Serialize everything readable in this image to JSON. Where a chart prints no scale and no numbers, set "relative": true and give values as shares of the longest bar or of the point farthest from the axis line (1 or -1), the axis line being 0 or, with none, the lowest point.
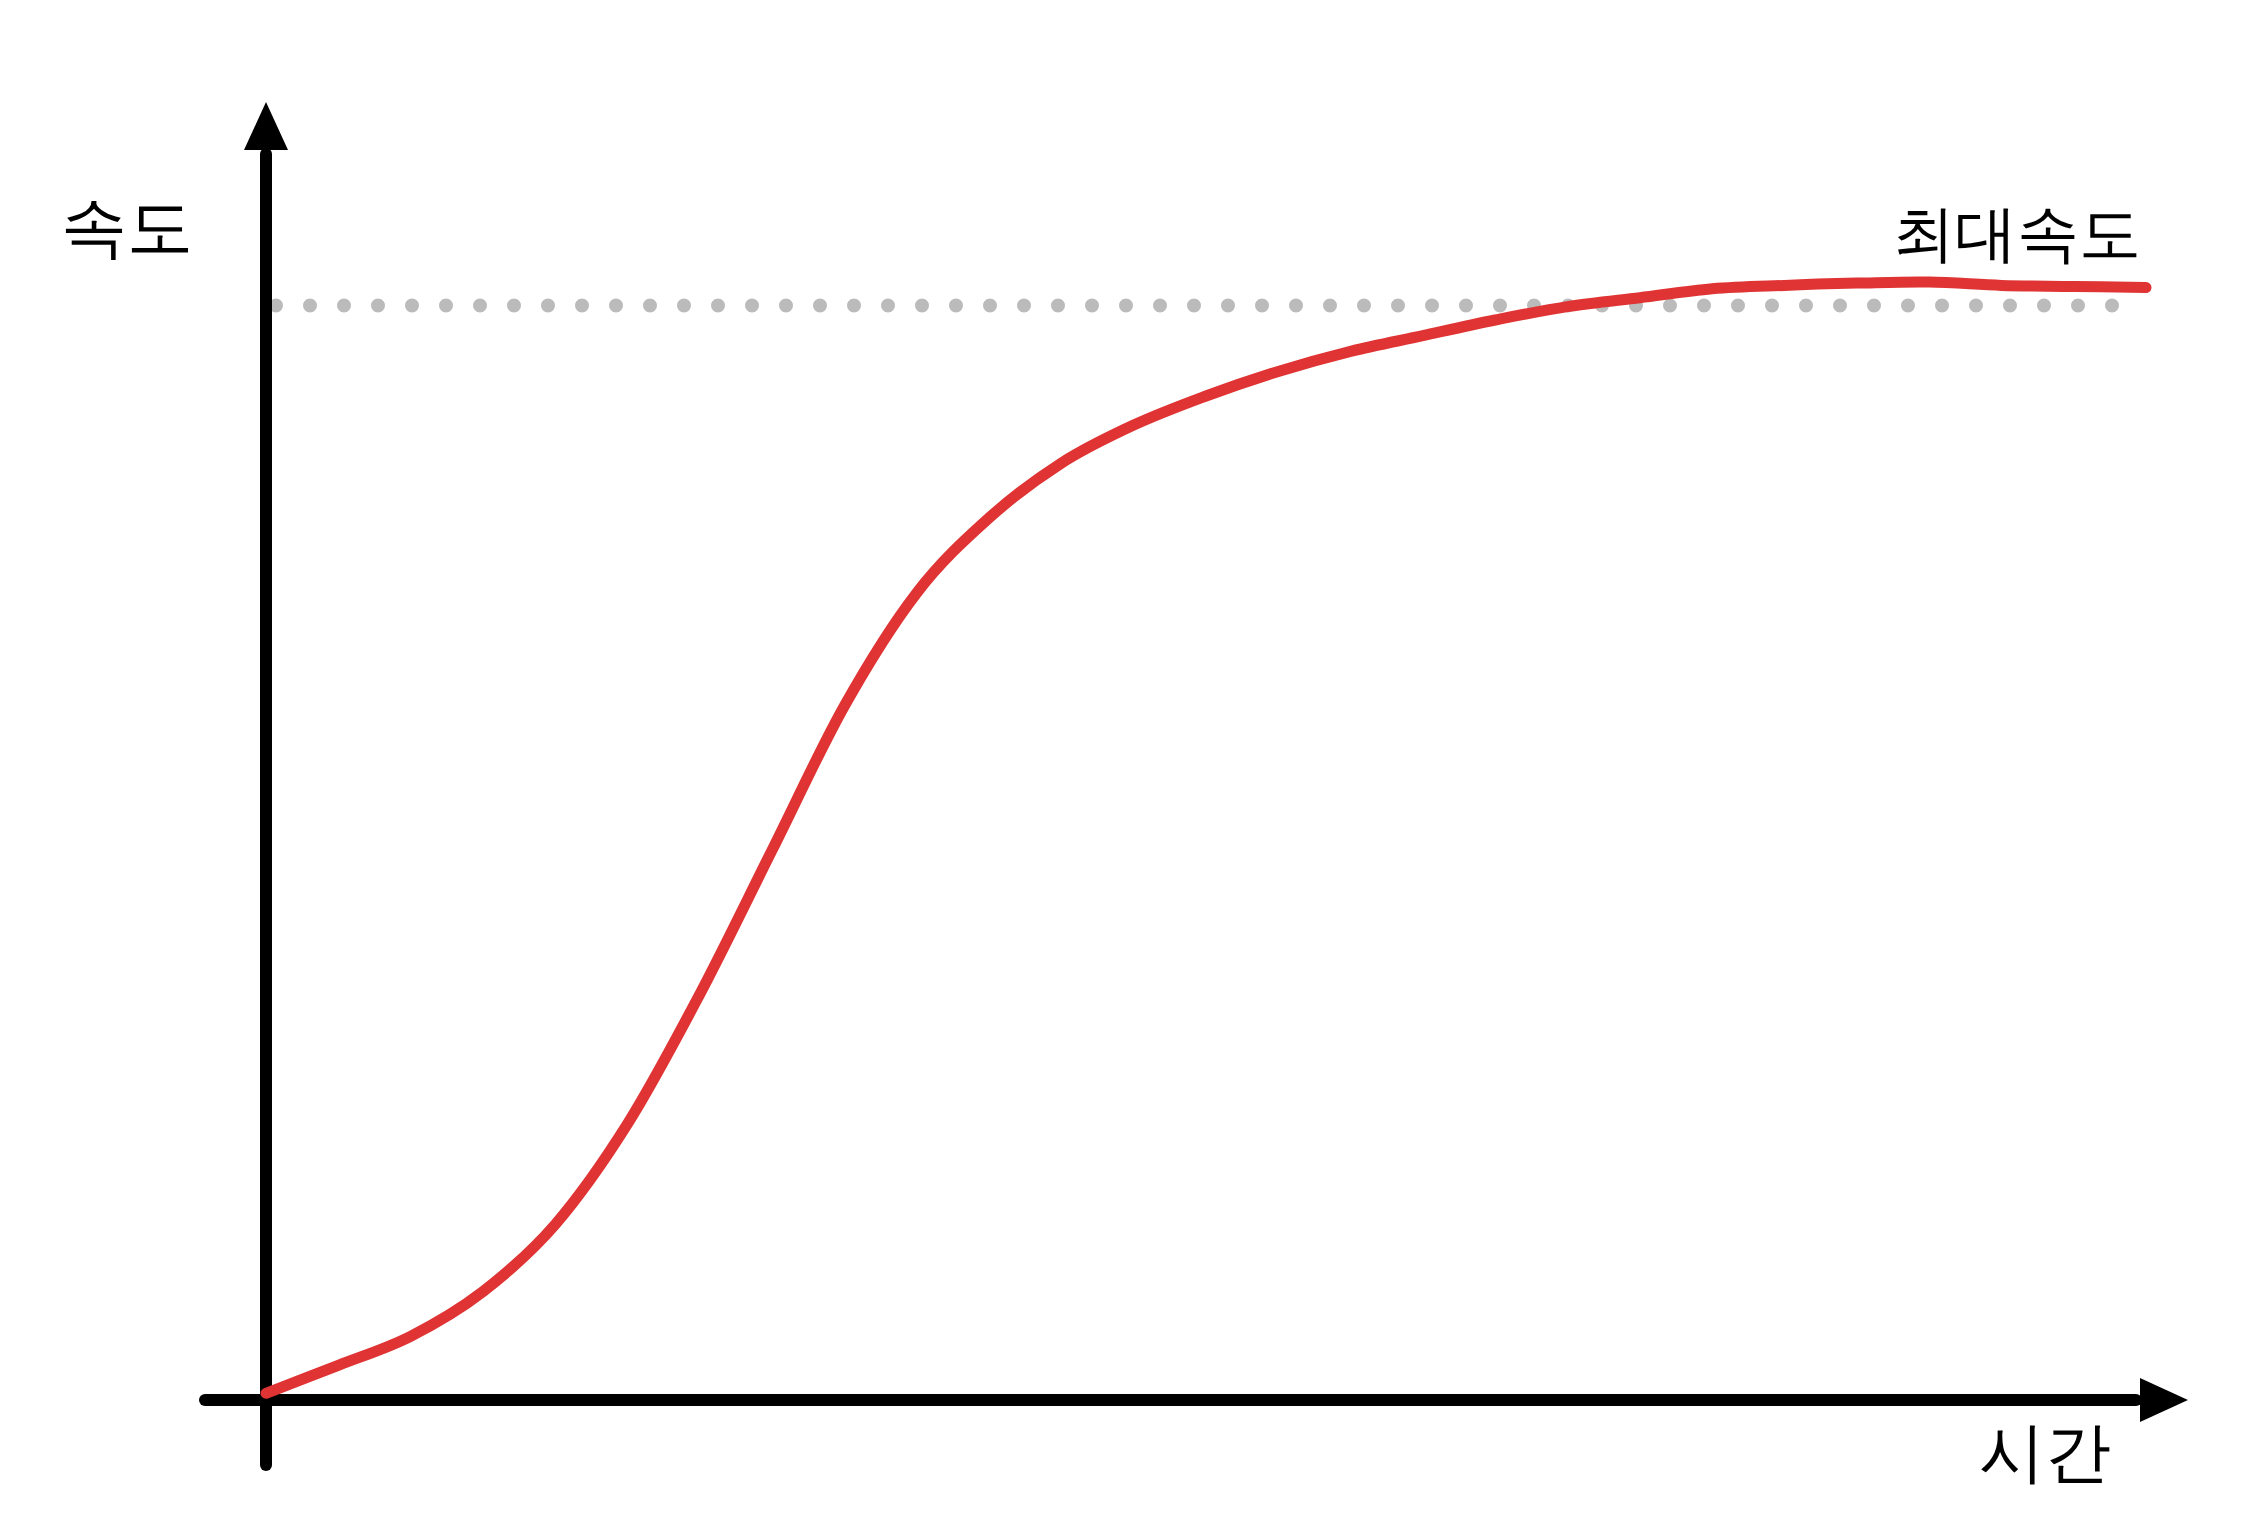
{
  "chart_data": {
    "type": "line",
    "relative": true,
    "xlabel": "시간",
    "ylabel": "속도",
    "categories": [
      null,
      null,
      null,
      null,
      null,
      null,
      null,
      null,
      null,
      null,
      null,
      null,
      null,
      null,
      null,
      null,
      null,
      null,
      null,
      null,
      null,
      null,
      null,
      null,
      null,
      null,
      null
    ],
    "series": [
      {
        "color": "#e03333",
        "values": [
          0.006,
          0.031,
          0.057,
          0.097,
          0.157,
          0.247,
          0.363,
          0.492,
          0.621,
          0.722,
          0.789,
          0.838,
          0.872,
          0.898,
          0.92,
          0.938,
          0.952,
          0.966,
          0.978,
          0.986,
          0.994,
          0.997,
          0.999,
          1,
          0.997,
          0.996,
          0.995
        ]
      }
    ],
    "ref_lines": [
      {
        "axis": "y",
        "value": 0.979,
        "label": "최대속도",
        "color": "#bbbbbb",
        "line_style": "dotted"
      }
    ]
  }
}
